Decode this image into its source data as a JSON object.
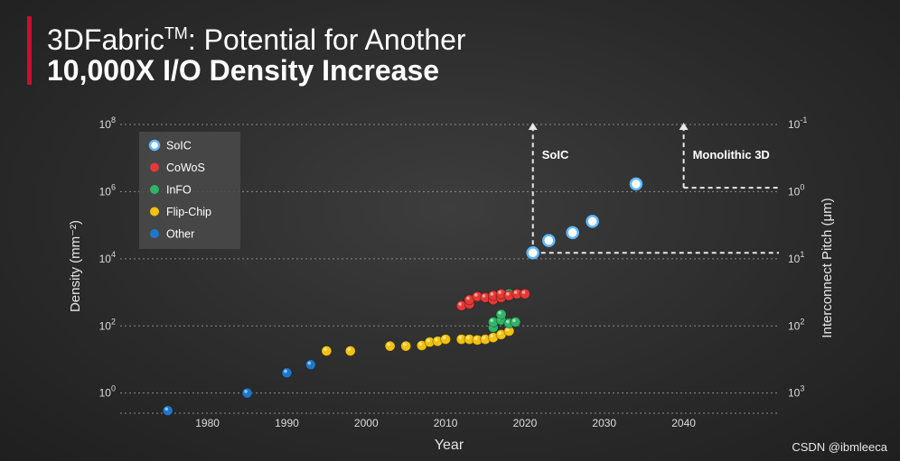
{
  "title": {
    "line1": "3DFabric",
    "line1_sup": "TM",
    "line1_rest": ": Potential for Another",
    "line2": "10,000X I/O Density Increase"
  },
  "watermark": "CSDN @ibmleeca",
  "colors": {
    "accent": "#c8102e",
    "soic": "#e8f4ff",
    "cowos": "#e53935",
    "info": "#2fb567",
    "flipchip": "#f2c20d",
    "other": "#1f77c9"
  },
  "chart_data": {
    "type": "scatter",
    "xlabel": "Year",
    "ylabel": "Density (mm⁻²)",
    "y2label": "Interconnect Pitch (μm)",
    "xlim": [
      1969,
      2052
    ],
    "ylim_log10": [
      -0.6,
      8
    ],
    "yscale": "log",
    "x_ticks": [
      1980,
      1990,
      2000,
      2010,
      2020,
      2030,
      2040
    ],
    "y_ticks": [
      {
        "exp": 0,
        "base": "10",
        "sup": "0"
      },
      {
        "exp": 2,
        "base": "10",
        "sup": "2"
      },
      {
        "exp": 4,
        "base": "10",
        "sup": "4"
      },
      {
        "exp": 6,
        "base": "10",
        "sup": "6"
      },
      {
        "exp": 8,
        "base": "10",
        "sup": "8"
      }
    ],
    "y2_ticks": [
      {
        "exp": 0,
        "base": "10",
        "sup": "3"
      },
      {
        "exp": 2,
        "base": "10",
        "sup": "2"
      },
      {
        "exp": 4,
        "base": "10",
        "sup": "1"
      },
      {
        "exp": 6,
        "base": "10",
        "sup": "0"
      },
      {
        "exp": 8,
        "base": "10",
        "sup": "-1"
      }
    ],
    "grid": true,
    "legend": {
      "position": "top-left",
      "entries": [
        {
          "key": "soic",
          "label": "SoIC"
        },
        {
          "key": "cowos",
          "label": "CoWoS"
        },
        {
          "key": "info",
          "label": "InFO"
        },
        {
          "key": "flipchip",
          "label": "Flip-Chip"
        },
        {
          "key": "other",
          "label": "Other"
        }
      ]
    },
    "series": [
      {
        "name": "Other",
        "key": "other",
        "points": [
          {
            "x": 1975,
            "y": 0.3
          },
          {
            "x": 1985,
            "y": 1.0
          },
          {
            "x": 1990,
            "y": 4
          },
          {
            "x": 1993,
            "y": 7
          }
        ]
      },
      {
        "name": "Flip-Chip",
        "key": "flipchip",
        "points": [
          {
            "x": 1995,
            "y": 18
          },
          {
            "x": 1998,
            "y": 18
          },
          {
            "x": 2003,
            "y": 25
          },
          {
            "x": 2005,
            "y": 25
          },
          {
            "x": 2007,
            "y": 26
          },
          {
            "x": 2008,
            "y": 33
          },
          {
            "x": 2009,
            "y": 35
          },
          {
            "x": 2010,
            "y": 40
          },
          {
            "x": 2012,
            "y": 40
          },
          {
            "x": 2013,
            "y": 40
          },
          {
            "x": 2014,
            "y": 38
          },
          {
            "x": 2015,
            "y": 40
          },
          {
            "x": 2016,
            "y": 45
          },
          {
            "x": 2017,
            "y": 55
          },
          {
            "x": 2018,
            "y": 70
          }
        ]
      },
      {
        "name": "InFO",
        "key": "info",
        "points": [
          {
            "x": 2016,
            "y": 90
          },
          {
            "x": 2016,
            "y": 130
          },
          {
            "x": 2017,
            "y": 150
          },
          {
            "x": 2017,
            "y": 220
          },
          {
            "x": 2018,
            "y": 120
          },
          {
            "x": 2018.8,
            "y": 130
          },
          {
            "x": 2018,
            "y": 900
          }
        ]
      },
      {
        "name": "CoWoS",
        "key": "cowos",
        "points": [
          {
            "x": 2012,
            "y": 400
          },
          {
            "x": 2013,
            "y": 450
          },
          {
            "x": 2013,
            "y": 600
          },
          {
            "x": 2014,
            "y": 750
          },
          {
            "x": 2015,
            "y": 700
          },
          {
            "x": 2016,
            "y": 600
          },
          {
            "x": 2016,
            "y": 800
          },
          {
            "x": 2017,
            "y": 700
          },
          {
            "x": 2017,
            "y": 900
          },
          {
            "x": 2018,
            "y": 800
          },
          {
            "x": 2019,
            "y": 900
          },
          {
            "x": 2020,
            "y": 900
          }
        ]
      },
      {
        "name": "SoIC",
        "key": "soic",
        "points": [
          {
            "x": 2021,
            "y": 15000
          },
          {
            "x": 2023,
            "y": 35000
          },
          {
            "x": 2026,
            "y": 60000
          },
          {
            "x": 2028.5,
            "y": 130000
          },
          {
            "x": 2034,
            "y": 1700000
          }
        ]
      }
    ],
    "annotations": [
      {
        "label": "SoIC",
        "x": 2021,
        "y_from": 15000,
        "y_to": 100000000,
        "baseline_y": 15000
      },
      {
        "label": "Monolithic 3D",
        "x": 2040,
        "y_from": 1300000,
        "y_to": 100000000,
        "baseline_y": 1300000
      }
    ]
  }
}
